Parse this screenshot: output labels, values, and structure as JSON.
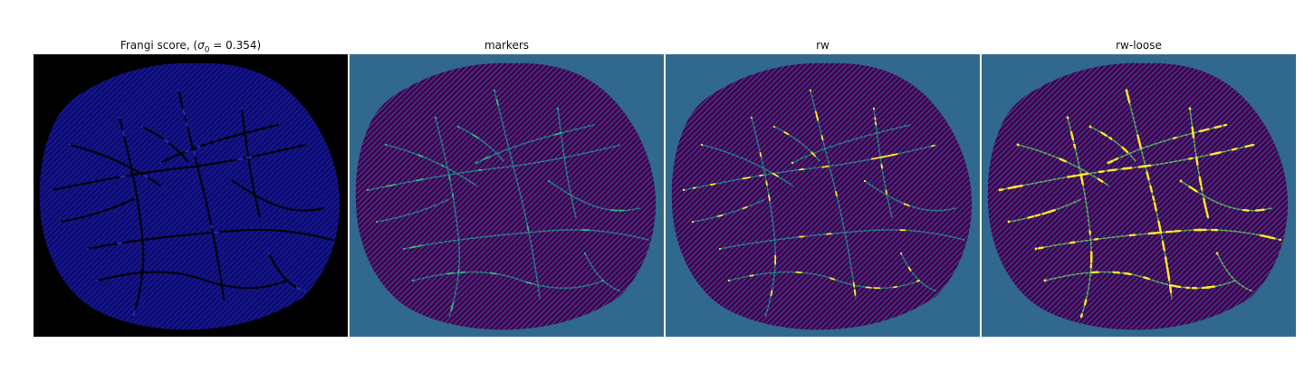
{
  "figure": {
    "panels": [
      {
        "key": "frangi",
        "title_prefix": "Frangi score, (",
        "title_symbol": "σ",
        "title_subscript": "0",
        "title_suffix": " = 0.354)",
        "background": "#000000",
        "tissue_color": "#0c0c6e",
        "texture_color": "#1e1ea8",
        "vessel_color": "#000000",
        "highlight_color": "#2a2ad0"
      },
      {
        "key": "markers",
        "title": "markers",
        "background": "#31688e",
        "tissue_color": "#440154",
        "texture_color": "#3b528b",
        "vessel_color": "#21918c",
        "highlight_color": "#35b779"
      },
      {
        "key": "rw",
        "title": "rw",
        "background": "#31688e",
        "tissue_color": "#440154",
        "texture_color": "#3b528b",
        "vessel_color": "#21918c",
        "highlight_color": "#fde725"
      },
      {
        "key": "rw-loose",
        "title": "rw-loose",
        "background": "#31688e",
        "tissue_color": "#440154",
        "texture_color": "#3b528b",
        "vessel_color": "#5ec962",
        "highlight_color": "#fde725"
      }
    ]
  }
}
